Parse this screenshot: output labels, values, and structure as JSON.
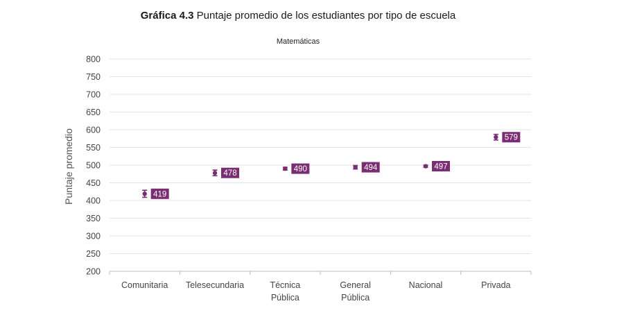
{
  "header": {
    "figure_number": "Gráfica 4.3",
    "figure_title": "Puntaje promedio de los estudiantes por tipo de escuela"
  },
  "colors": {
    "accent": "#7b2d74",
    "grid": "#e3e3e3",
    "axis": "#bdbdbd"
  },
  "chart_data": {
    "type": "scatter",
    "title": "Matemáticas",
    "xlabel": "",
    "ylabel": "Puntaje promedio",
    "ylim": [
      200,
      800
    ],
    "yticks": [
      200,
      250,
      300,
      350,
      400,
      450,
      500,
      550,
      600,
      650,
      700,
      750,
      800
    ],
    "grid": true,
    "categories": [
      [
        "Comunitaria"
      ],
      [
        "Telesecundaria"
      ],
      [
        "Técnica",
        "Pública"
      ],
      [
        "General",
        "Pública"
      ],
      [
        "Nacional"
      ],
      [
        "Privada"
      ]
    ],
    "values": [
      419,
      478,
      490,
      494,
      497,
      579
    ],
    "error_low": [
      409,
      470,
      486,
      489,
      494,
      571
    ],
    "error_high": [
      429,
      486,
      494,
      499,
      500,
      587
    ],
    "data_labels": [
      "419",
      "478",
      "490",
      "494",
      "497",
      "579"
    ]
  }
}
